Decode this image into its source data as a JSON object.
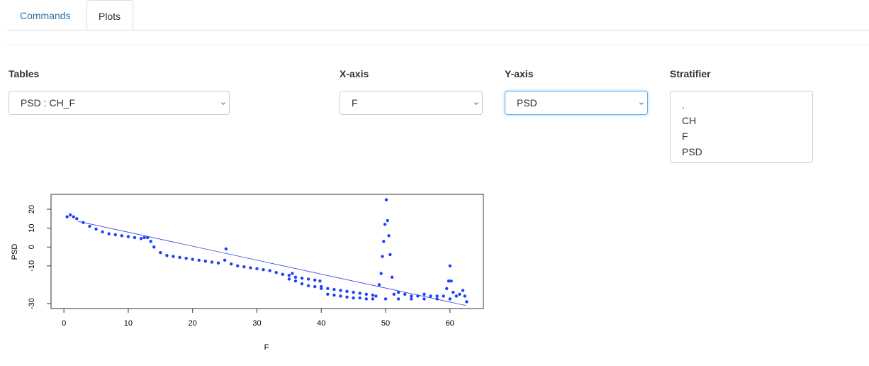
{
  "tabs": [
    "Commands",
    "Plots"
  ],
  "controls": [
    {
      "label": "Tables",
      "value": "PSD : CH_F"
    },
    {
      "label": "X-axis",
      "value": "F"
    },
    {
      "label": "Y-axis",
      "value": "PSD"
    }
  ],
  "stratifier": {
    "label": "Stratifier",
    "options": [
      ".",
      "CH",
      "F",
      "PSD"
    ]
  },
  "chart_data": {
    "type": "scatter",
    "xlabel": "F",
    "ylabel": "PSD",
    "color": "#1f3fff",
    "x": [
      0.5,
      1,
      1.5,
      2,
      3,
      4,
      5,
      6,
      7,
      8,
      9,
      10,
      11,
      12,
      12.5,
      13,
      13.5,
      14,
      15,
      16,
      17,
      18,
      19,
      20,
      21,
      22,
      23,
      24,
      25,
      25.2,
      26,
      27,
      28,
      29,
      30,
      31,
      32,
      33,
      34,
      35,
      35.5,
      36,
      37,
      38,
      39,
      39.8,
      40,
      41,
      42,
      43,
      44,
      45,
      46,
      47,
      48,
      48.5,
      49,
      49.3,
      49.5,
      49.7,
      49.9,
      50.1,
      50.3,
      50.5,
      50.7,
      51,
      51.3,
      52,
      53,
      54,
      55,
      56,
      57,
      58,
      59,
      59.5,
      59.8,
      60,
      60.2,
      60.5,
      61,
      61.5,
      62,
      62.3,
      62.6,
      35,
      36,
      37,
      38,
      39,
      40,
      41,
      42,
      43,
      44,
      45,
      46,
      47,
      48,
      50,
      52,
      54,
      56,
      58,
      60
    ],
    "y": [
      16,
      17,
      16,
      15,
      13,
      11,
      9.5,
      8,
      7,
      6.5,
      6,
      5.5,
      5,
      4.5,
      5,
      5,
      3,
      0,
      -3,
      -4.5,
      -5,
      -5.5,
      -6,
      -6.5,
      -7,
      -7.5,
      -8,
      -8.5,
      -7,
      -1,
      -9,
      -10,
      -10.5,
      -11,
      -11.5,
      -12,
      -12.5,
      -13.5,
      -14.5,
      -15,
      -14,
      -16,
      -16.5,
      -17,
      -17.5,
      -18,
      -21,
      -22,
      -22.5,
      -23,
      -23.5,
      -24,
      -24.5,
      -25,
      -25.5,
      -26,
      -20,
      -14,
      -5,
      3,
      12,
      25,
      14,
      6,
      -4,
      -16,
      -25,
      -24,
      -25,
      -26,
      -26,
      -25,
      -26,
      -26,
      -26,
      -22,
      -18,
      -10,
      -18,
      -24,
      -26,
      -25,
      -23,
      -26,
      -29,
      -17,
      -18,
      -19.5,
      -20.5,
      -21,
      -22,
      -25,
      -25.5,
      -26,
      -26.5,
      -27,
      -27,
      -27.5,
      -27.5,
      -27.5,
      -27.5,
      -27.5,
      -27.5,
      -27.5,
      -27.5
    ],
    "fit_line": {
      "x": [
        2.2,
        62.5
      ],
      "y": [
        13.6,
        -31
      ]
    },
    "fit_color": "#2b3fe0",
    "xlim": [
      -2,
      65.2
    ],
    "ylim": [
      -32.6,
      27.9
    ],
    "xticks": [
      0,
      10,
      20,
      30,
      40,
      50,
      60
    ],
    "yticks": [
      20,
      10,
      0,
      -10,
      -30
    ]
  }
}
